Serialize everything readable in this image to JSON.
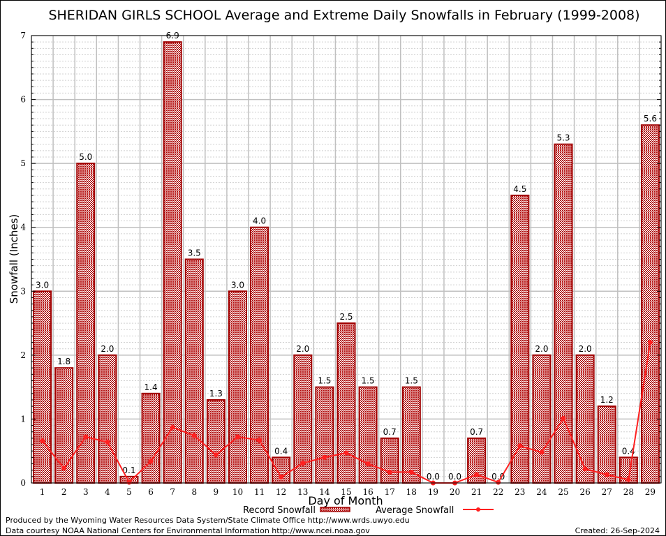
{
  "chart_data": {
    "type": "bar",
    "title": "SHERIDAN GIRLS SCHOOL Average and Extreme Daily Snowfalls in February (1999-2008)",
    "xlabel": "Day of Month",
    "ylabel": "Snowfall (Inches)",
    "ylim": [
      0,
      7
    ],
    "yticks": [
      "0",
      "1",
      "2",
      "3",
      "4",
      "5",
      "6",
      "7"
    ],
    "grid": true,
    "categories": [
      "1",
      "2",
      "3",
      "4",
      "5",
      "6",
      "7",
      "8",
      "9",
      "10",
      "11",
      "12",
      "13",
      "14",
      "15",
      "16",
      "17",
      "18",
      "19",
      "20",
      "21",
      "22",
      "23",
      "24",
      "25",
      "26",
      "27",
      "28",
      "29"
    ],
    "series": [
      {
        "name": "Record Snowfall",
        "type": "bar",
        "color": "#a00000",
        "values": [
          3.0,
          1.8,
          5.0,
          2.0,
          0.1,
          1.4,
          6.9,
          3.5,
          1.3,
          3.0,
          4.0,
          0.4,
          2.0,
          1.5,
          2.5,
          1.5,
          0.7,
          1.5,
          0.0,
          0.0,
          0.7,
          0.0,
          4.5,
          2.0,
          5.3,
          2.0,
          1.2,
          0.4,
          5.6
        ],
        "labels": [
          "3.0",
          "1.8",
          "5.0",
          "2.0",
          "0.1",
          "1.4",
          "6.9",
          "3.5",
          "1.3",
          "3.0",
          "4.0",
          "0.4",
          "2.0",
          "1.5",
          "2.5",
          "1.5",
          "0.7",
          "1.5",
          "0.0",
          "0.0",
          "0.7",
          "0.0",
          "4.5",
          "2.0",
          "5.3",
          "2.0",
          "1.2",
          "0.4",
          "5.6"
        ]
      },
      {
        "name": "Average Snowfall",
        "type": "line",
        "color": "#ff2020",
        "values": [
          0.66,
          0.23,
          0.72,
          0.64,
          0.01,
          0.34,
          0.87,
          0.74,
          0.44,
          0.72,
          0.67,
          0.09,
          0.31,
          0.4,
          0.47,
          0.3,
          0.17,
          0.17,
          0.0,
          0.0,
          0.13,
          0.01,
          0.58,
          0.48,
          1.01,
          0.22,
          0.13,
          0.05,
          2.2
        ]
      }
    ],
    "legend_position": "bottom-center"
  },
  "footer": {
    "produced": "Produced by the Wyoming Water Resources Data System/State Climate Office http://www.wrds.uwyo.edu",
    "courtesy": "Data courtesy NOAA National Centers for Environmental Information http://www.ncei.noaa.gov",
    "created": "Created: 26-Sep-2024"
  }
}
